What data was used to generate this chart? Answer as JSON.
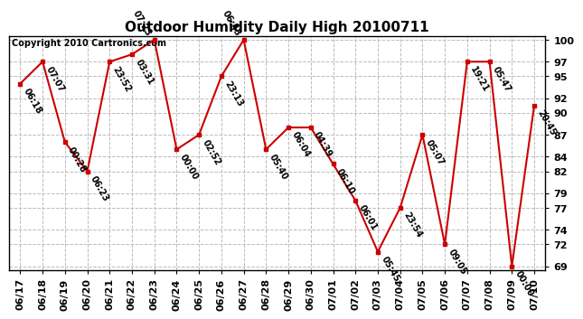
{
  "title": "Outdoor Humidity Daily High 20100711",
  "copyright": "Copyright 2010 Cartronics.com",
  "dates": [
    "06/17",
    "06/18",
    "06/19",
    "06/20",
    "06/21",
    "06/22",
    "06/23",
    "06/24",
    "06/25",
    "06/26",
    "06/27",
    "06/28",
    "06/29",
    "06/30",
    "07/01",
    "07/02",
    "07/03",
    "07/04",
    "07/05",
    "07/06",
    "07/07",
    "07/08",
    "07/09",
    "07/10"
  ],
  "values": [
    94,
    97,
    86,
    82,
    97,
    98,
    100,
    85,
    87,
    95,
    100,
    85,
    88,
    88,
    83,
    78,
    71,
    77,
    87,
    72,
    97,
    97,
    69,
    91
  ],
  "labels": [
    "06:18",
    "07:07",
    "00:28",
    "06:23",
    "23:52",
    "03:31",
    "07:23",
    "00:00",
    "02:52",
    "23:13",
    "06:43",
    "05:40",
    "06:04",
    "04:39",
    "06:10",
    "06:01",
    "05:45",
    "23:54",
    "05:07",
    "09:05",
    "19:21",
    "05:47",
    "00:00",
    "20:45"
  ],
  "above_label_indices": [
    6,
    10
  ],
  "ylim_min": 69,
  "ylim_max": 100,
  "yticks": [
    100,
    97,
    95,
    92,
    90,
    87,
    84,
    82,
    79,
    77,
    74,
    72,
    69
  ],
  "line_color": "#cc0000",
  "marker_color": "#cc0000",
  "bg_color": "#ffffff",
  "grid_color": "#bbbbbb",
  "title_fontsize": 11,
  "label_fontsize": 7,
  "copyright_fontsize": 7,
  "tick_fontsize": 8
}
